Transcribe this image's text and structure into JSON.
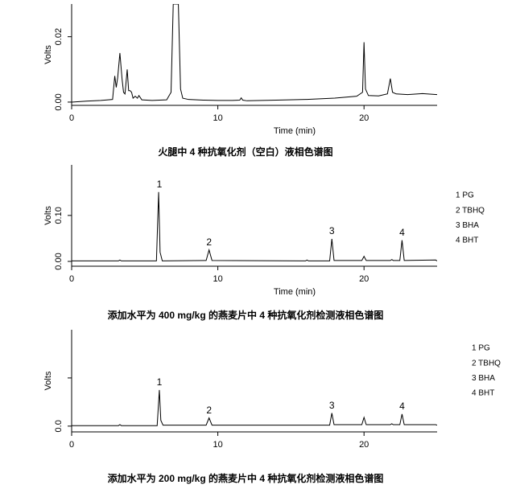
{
  "chart_data": [
    {
      "type": "line",
      "title": "火腿中 4 种抗氧化剂（空白）液相色谱图",
      "xlabel": "Time (min)",
      "ylabel": "Volts",
      "xlim": [
        0,
        25
      ],
      "xticks": [
        0,
        10,
        20
      ],
      "ylim": [
        -0.001,
        0.03
      ],
      "yticks": [
        {
          "value": 0,
          "label": "0.00"
        },
        0.02
      ],
      "series": [
        {
          "color": "#000000",
          "x": [
            0,
            1,
            2,
            2.8,
            2.95,
            3.05,
            3.15,
            3.3,
            3.45,
            3.55,
            3.65,
            3.8,
            3.9,
            4.0,
            4.1,
            4.2,
            4.35,
            4.5,
            4.6,
            4.8,
            5.5,
            6.5,
            6.8,
            6.95,
            7.05,
            7.3,
            7.45,
            7.6,
            8,
            9,
            10,
            11,
            11.5,
            11.6,
            11.7,
            12,
            14,
            16,
            18,
            19.5,
            19.9,
            20.0,
            20.1,
            20.3,
            21,
            21.6,
            21.8,
            21.95,
            22.2,
            23,
            24,
            25
          ],
          "values": [
            0,
            0.0003,
            0.0005,
            0.0008,
            0.008,
            0.0045,
            0.0075,
            0.015,
            0.007,
            0.003,
            0.0025,
            0.01,
            0.0035,
            0.0035,
            0.003,
            0.0012,
            0.0018,
            0.0012,
            0.002,
            0.0007,
            0.0005,
            0.0007,
            0.003,
            0.03,
            0.03,
            0.03,
            0.004,
            0.0012,
            0.0008,
            0.0006,
            0.0005,
            0.0005,
            0.0006,
            0.0013,
            0.0006,
            0.0004,
            0.0006,
            0.0008,
            0.0012,
            0.0018,
            0.003,
            0.0183,
            0.004,
            0.002,
            0.0019,
            0.0025,
            0.0072,
            0.003,
            0.0025,
            0.0023,
            0.0026,
            0.0023
          ]
        }
      ]
    },
    {
      "type": "line",
      "title": "添加水平为 400 mg/kg 的燕麦片中 4 种抗氧化剂检测液相色谱图",
      "xlabel": "Time (min)",
      "ylabel": "Volts",
      "xlim": [
        0,
        25
      ],
      "xticks": [
        0,
        10,
        20
      ],
      "ylim": [
        -0.0105,
        0.21
      ],
      "yticks": [
        {
          "value": 0,
          "label": "0.00"
        },
        {
          "value": 0.1,
          "label": "0.10"
        }
      ],
      "peak_legend": [
        "1 PG",
        "2 TBHQ",
        "3 BHA",
        "4 BHT"
      ],
      "annotations": [
        {
          "text": "1",
          "x": 6,
          "y": 0.151
        },
        {
          "text": "2",
          "x": 9.4,
          "y": 0.025
        },
        {
          "text": "3",
          "x": 17.8,
          "y": 0.049
        },
        {
          "text": "4",
          "x": 22.6,
          "y": 0.046
        }
      ],
      "series": [
        {
          "color": "#000000",
          "x": [
            0,
            3.2,
            3.3,
            3.4,
            5.8,
            5.95,
            6.05,
            6.2,
            9.2,
            9.4,
            9.6,
            16,
            16.1,
            16.2,
            17.65,
            17.8,
            17.95,
            19.85,
            20.0,
            20.15,
            21.8,
            21.9,
            22.0,
            22.45,
            22.6,
            22.75,
            24.9,
            25
          ],
          "values": [
            0.001,
            0.001,
            0.003,
            0.001,
            0.001,
            0.151,
            0.02,
            0.001,
            0.002,
            0.025,
            0.002,
            0.001,
            0.003,
            0.001,
            0.001,
            0.049,
            0.002,
            0.002,
            0.011,
            0.002,
            0.002,
            0.004,
            0.002,
            0.002,
            0.046,
            0.002,
            0.003,
            0.001
          ]
        }
      ]
    },
    {
      "type": "line",
      "title": "添加水平为 200 mg/kg 的燕麦片中 4 种抗氧化剂检测液相色谱图",
      "ylabel": "Volts",
      "xlim": [
        0,
        25
      ],
      "xticks": [
        0,
        10,
        20
      ],
      "ylim": [
        -0.012,
        0.2
      ],
      "yticks": [
        {
          "value": 0,
          "label": "0.0"
        },
        {
          "value": 0.1,
          "label": null
        }
      ],
      "peak_legend": [
        "1 PG",
        "2 TBHQ",
        "3 BHA",
        "4 BHT"
      ],
      "annotations": [
        {
          "text": "1",
          "x": 6,
          "y": 0.075
        },
        {
          "text": "2",
          "x": 9.4,
          "y": 0.017
        },
        {
          "text": "3",
          "x": 17.8,
          "y": 0.027
        },
        {
          "text": "4",
          "x": 22.6,
          "y": 0.025
        }
      ],
      "series": [
        {
          "color": "#000000",
          "x": [
            0,
            3.2,
            3.3,
            3.4,
            5.85,
            6.0,
            6.1,
            6.25,
            9.2,
            9.4,
            9.6,
            17.65,
            17.8,
            17.95,
            19.85,
            20.0,
            20.15,
            21.8,
            21.9,
            22.0,
            22.45,
            22.6,
            22.75,
            24.9,
            25
          ],
          "values": [
            0.001,
            0.001,
            0.003,
            0.001,
            0.001,
            0.075,
            0.012,
            0.002,
            0.002,
            0.017,
            0.002,
            0.002,
            0.027,
            0.003,
            0.003,
            0.018,
            0.003,
            0.003,
            0.005,
            0.003,
            0.003,
            0.025,
            0.003,
            0.003,
            0.002
          ]
        }
      ]
    }
  ]
}
